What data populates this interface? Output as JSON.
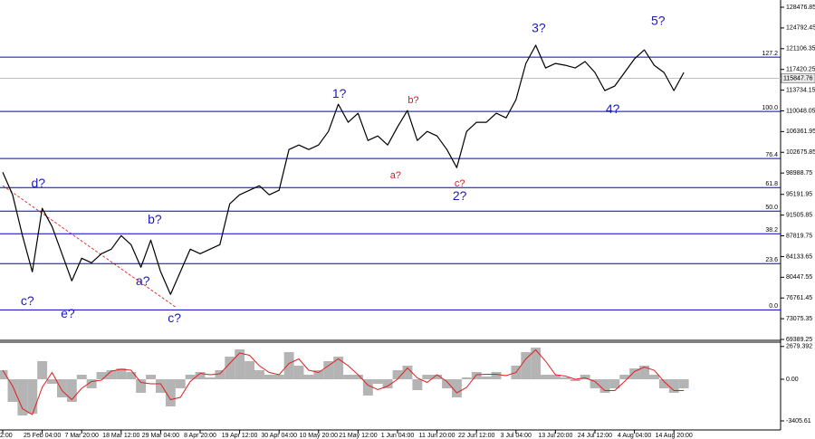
{
  "chart_data": {
    "type": "line",
    "categories": [
      "2:00",
      null,
      null,
      null,
      "25 Feb 04:00",
      null,
      null,
      null,
      "7 Mar 20:00",
      null,
      null,
      null,
      "18 Mar 12:00",
      null,
      null,
      null,
      "29 Mar 04:00",
      null,
      null,
      null,
      "8 Apr 20:00",
      null,
      null,
      null,
      "19 Apr 12:00",
      null,
      null,
      null,
      "30 Apr 04:00",
      null,
      null,
      null,
      "10 May 20:00",
      null,
      null,
      null,
      "21 May 12:00",
      null,
      null,
      null,
      "1 Jun 04:00",
      null,
      null,
      null,
      "11 Jun 20:00",
      null,
      null,
      null,
      "22 Jun 12:00",
      null,
      null,
      null,
      "3 Jul 04:00",
      null,
      null,
      null,
      "13 Jul 20:00",
      null,
      null,
      null,
      "24 Jul 12:00",
      null,
      null,
      null,
      "4 Aug 04:00",
      null,
      null,
      null,
      "14 Aug 20:00",
      null
    ],
    "series": [
      {
        "color": "#000000",
        "values": [
          99143,
          95113,
          87863,
          81415,
          92700,
          89473,
          84640,
          79800,
          83830,
          83025,
          84640,
          85440,
          87863,
          86250,
          82220,
          87055,
          81415,
          77385,
          81415,
          85440,
          84640,
          85440,
          86250,
          93500,
          95113,
          95920,
          96725,
          95113,
          95920,
          103173,
          103980,
          103173,
          103980,
          106396,
          111232,
          108008,
          109620,
          104785,
          105590,
          103980,
          107200,
          110100,
          104785,
          106396,
          105590,
          103173,
          99950,
          106396,
          108008,
          108008,
          109620,
          108810,
          112040,
          118484,
          121710,
          117680,
          118484,
          118160,
          117680,
          118810,
          116870,
          113650,
          114455,
          116870,
          119290,
          120900,
          118160,
          116870,
          113650,
          116870
        ]
      }
    ],
    "ylim": [
      69228,
      129766
    ],
    "yticks": [
      128476.85,
      124792.45,
      121106.35,
      117420.25,
      113734.15,
      110048.05,
      106361.95,
      102675.85,
      98988.75,
      95191.95,
      91505.85,
      87819.75,
      84133.65,
      80447.55,
      76761.45,
      73075.35,
      69389.25
    ],
    "fib_levels": [
      {
        "label": "127.2",
        "price": 119612
      },
      {
        "label": "100.0",
        "price": 109942
      },
      {
        "label": "76.4",
        "price": 101561
      },
      {
        "label": "61.8",
        "price": 96404
      },
      {
        "label": "50.0",
        "price": 92213
      },
      {
        "label": "38.2",
        "price": 88184
      },
      {
        "label": "23.6",
        "price": 82865
      },
      {
        "label": "0.0",
        "price": 74645
      }
    ],
    "fib_color": "#0000cc",
    "current_price": 115847.76,
    "annotations": [
      {
        "text": "d?",
        "i": 3.6,
        "price": 97050,
        "color": "#1c1cb4",
        "size": "large"
      },
      {
        "text": "c?",
        "i": 2.5,
        "price": 76095,
        "color": "#1c1cb4",
        "size": "large"
      },
      {
        "text": "e?",
        "i": 6.6,
        "price": 73840,
        "color": "#1c1cb4",
        "size": "large"
      },
      {
        "text": "b?",
        "i": 15.4,
        "price": 90600,
        "color": "#1c1cb4",
        "size": "large"
      },
      {
        "text": "a?",
        "i": 14.2,
        "price": 79640,
        "color": "#1c1cb4",
        "size": "large"
      },
      {
        "text": "c?",
        "i": 17.4,
        "price": 73035,
        "color": "#1c1cb4",
        "size": "large"
      },
      {
        "text": "1?",
        "i": 34.1,
        "price": 113000,
        "color": "#1c1cb4",
        "size": "large"
      },
      {
        "text": "a?",
        "i": 39.8,
        "price": 98500,
        "color": "#cc2020",
        "size": "small"
      },
      {
        "text": "b?",
        "i": 41.6,
        "price": 111876,
        "color": "#cc2020",
        "size": "small"
      },
      {
        "text": "c?",
        "i": 46.3,
        "price": 97050,
        "color": "#cc2020",
        "size": "small"
      },
      {
        "text": "2?",
        "i": 46.3,
        "price": 94793,
        "color": "#1c1cb4",
        "size": "large"
      },
      {
        "text": "3?",
        "i": 54.3,
        "price": 124609,
        "color": "#1c1cb4",
        "size": "large"
      },
      {
        "text": "4?",
        "i": 61.8,
        "price": 110265,
        "color": "#1c1cb4",
        "size": "large"
      },
      {
        "text": "5?",
        "i": 66.4,
        "price": 125900,
        "color": "#1c1cb4",
        "size": "large"
      }
    ],
    "indicator": {
      "type": "bar",
      "color": "#b4b4b4",
      "values": [
        740,
        -1850,
        -2960,
        -2812,
        1480,
        -370,
        -1480,
        -1850,
        370,
        -740,
        592,
        740,
        888,
        592,
        -1110,
        370,
        -1110,
        -2220,
        -740,
        370,
        592,
        148,
        740,
        1850,
        2442,
        1480,
        740,
        370,
        370,
        2220,
        1110,
        370,
        740,
        1480,
        1850,
        370,
        370,
        -1332,
        -370,
        -740,
        740,
        1110,
        -888,
        370,
        370,
        -740,
        -1480,
        148,
        592,
        222,
        592,
        0,
        1110,
        2220,
        2590,
        370,
        370,
        148,
        -148,
        370,
        -740,
        -1110,
        -740,
        370,
        888,
        1110,
        370,
        -740,
        -1110,
        -740
      ],
      "signal": {
        "color": "#e02020",
        "values": [
          740,
          -555,
          -2405,
          -2886,
          -666,
          555,
          -925,
          -1665,
          -740,
          -185,
          -74,
          666,
          814,
          740,
          -259,
          -370,
          -370,
          -1665,
          -1480,
          -185,
          481,
          370,
          444,
          1295,
          2146,
          1961,
          1110,
          555,
          370,
          1295,
          1665,
          740,
          555,
          1110,
          1665,
          1110,
          370,
          -481,
          -851,
          -555,
          0,
          925,
          111,
          -259,
          370,
          -185,
          -1110,
          -666,
          370,
          407,
          407,
          296,
          555,
          1665,
          2405,
          1480,
          370,
          259,
          0,
          111,
          -185,
          -925,
          -925,
          -185,
          629,
          999,
          740,
          -185,
          -925,
          -925
        ]
      },
      "ylim": [
        -4144,
        3034
      ],
      "yticks": [
        2679.392,
        {
          "value": 0,
          "label": "0.00"
        },
        -3405.61
      ]
    }
  }
}
